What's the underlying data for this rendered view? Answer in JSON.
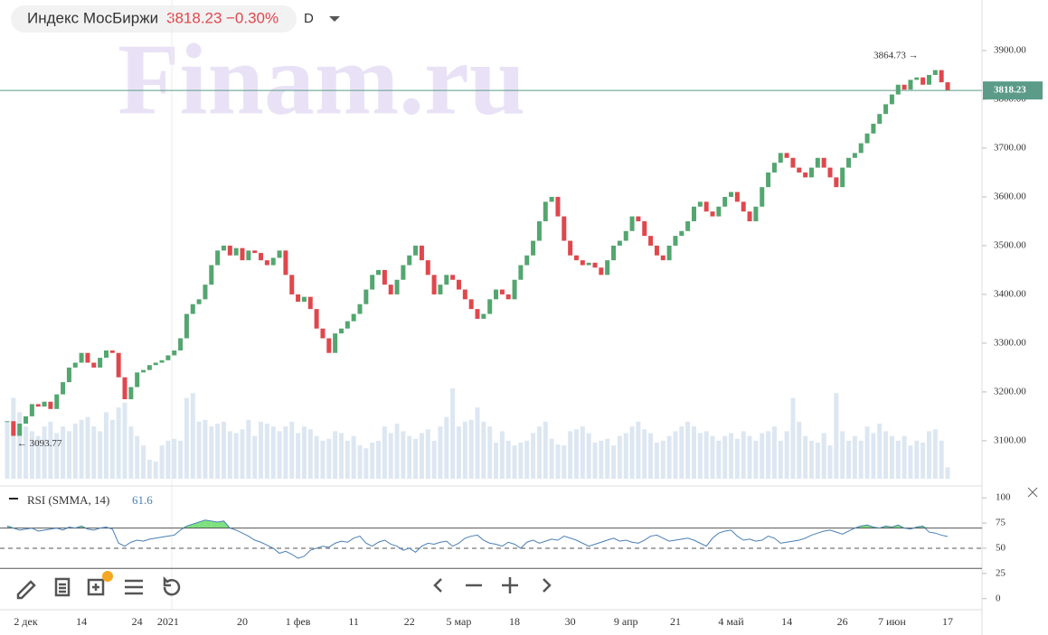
{
  "header": {
    "name": "Индекс МосБиржи",
    "price": 3818.23,
    "change": "−0.30%",
    "interval": "D"
  },
  "chart_data": [
    {
      "type": "candlestick",
      "watermark": "Finam.ru",
      "up_color": "#53a66f",
      "down_color": "#e0474c",
      "volume_color": "#dde7f2",
      "price_line_color": "#5b9b87",
      "categories": [
        null,
        null,
        null,
        "2 дек",
        null,
        null,
        null,
        null,
        null,
        null,
        null,
        null,
        "14",
        null,
        null,
        null,
        null,
        null,
        null,
        null,
        null,
        "24",
        null,
        null,
        null,
        null,
        "2021",
        null,
        null,
        null,
        null,
        null,
        null,
        null,
        null,
        null,
        null,
        null,
        "20",
        null,
        null,
        null,
        null,
        null,
        null,
        null,
        null,
        "1 фев",
        null,
        null,
        null,
        null,
        null,
        null,
        null,
        null,
        "11",
        null,
        null,
        null,
        null,
        null,
        null,
        null,
        null,
        "22",
        null,
        null,
        null,
        null,
        null,
        null,
        null,
        "5 мар",
        null,
        null,
        null,
        null,
        null,
        null,
        null,
        null,
        "18",
        null,
        null,
        null,
        null,
        null,
        null,
        null,
        null,
        "30",
        null,
        null,
        null,
        null,
        null,
        null,
        null,
        null,
        "9 апр",
        null,
        null,
        null,
        null,
        null,
        null,
        null,
        "21",
        null,
        null,
        null,
        null,
        null,
        null,
        null,
        null,
        "4 май",
        null,
        null,
        null,
        null,
        null,
        null,
        null,
        null,
        "14",
        null,
        null,
        null,
        null,
        null,
        null,
        null,
        null,
        "26",
        null,
        null,
        null,
        null,
        null,
        null,
        null,
        "7 июн",
        null,
        null,
        null,
        null,
        null,
        null,
        null,
        null,
        "17"
      ],
      "close": [
        3140,
        3110,
        3135,
        3150,
        3175,
        3170,
        3180,
        3165,
        3195,
        3220,
        3250,
        3260,
        3280,
        3260,
        3250,
        3270,
        3285,
        3280,
        3230,
        3185,
        3210,
        3240,
        3245,
        3255,
        3260,
        3265,
        3275,
        3285,
        3310,
        3360,
        3380,
        3390,
        3420,
        3460,
        3490,
        3500,
        3480,
        3495,
        3470,
        3490,
        3485,
        3470,
        3460,
        3475,
        3490,
        3440,
        3400,
        3385,
        3395,
        3370,
        3330,
        3310,
        3280,
        3320,
        3330,
        3345,
        3360,
        3380,
        3410,
        3440,
        3450,
        3420,
        3400,
        3430,
        3460,
        3480,
        3500,
        3470,
        3440,
        3400,
        3420,
        3440,
        3430,
        3410,
        3390,
        3370,
        3350,
        3360,
        3390,
        3410,
        3400,
        3390,
        3430,
        3460,
        3480,
        3510,
        3550,
        3590,
        3600,
        3560,
        3510,
        3480,
        3470,
        3460,
        3465,
        3455,
        3440,
        3470,
        3500,
        3510,
        3530,
        3560,
        3550,
        3520,
        3500,
        3480,
        3470,
        3500,
        3520,
        3530,
        3550,
        3580,
        3590,
        3570,
        3560,
        3580,
        3600,
        3610,
        3590,
        3570,
        3550,
        3580,
        3620,
        3650,
        3670,
        3690,
        3680,
        3660,
        3650,
        3640,
        3660,
        3680,
        3660,
        3640,
        3620,
        3660,
        3680,
        3690,
        3710,
        3730,
        3750,
        3770,
        3790,
        3810,
        3830,
        3820,
        3840,
        3845,
        3830,
        3850,
        3860,
        3835,
        3818.23
      ],
      "volume": [
        60,
        85,
        70,
        55,
        50,
        45,
        55,
        60,
        48,
        55,
        50,
        58,
        62,
        65,
        55,
        50,
        70,
        62,
        75,
        80,
        55,
        45,
        35,
        20,
        18,
        35,
        40,
        42,
        40,
        85,
        90,
        60,
        62,
        55,
        58,
        60,
        50,
        48,
        52,
        62,
        45,
        60,
        58,
        55,
        50,
        55,
        60,
        48,
        55,
        52,
        45,
        40,
        42,
        50,
        48,
        40,
        45,
        35,
        32,
        38,
        40,
        55,
        48,
        58,
        50,
        45,
        42,
        48,
        52,
        40,
        55,
        65,
        95,
        55,
        60,
        62,
        75,
        60,
        55,
        38,
        50,
        40,
        35,
        38,
        40,
        48,
        55,
        60,
        42,
        36,
        35,
        50,
        52,
        55,
        48,
        38,
        40,
        42,
        35,
        45,
        48,
        55,
        60,
        52,
        48,
        38,
        40,
        45,
        50,
        55,
        60,
        55,
        48,
        50,
        45,
        40,
        45,
        48,
        42,
        50,
        45,
        40,
        48,
        50,
        55,
        40,
        50,
        85,
        60,
        45,
        40,
        38,
        48,
        35,
        90,
        50,
        40,
        45,
        40,
        55,
        48,
        58,
        50,
        45,
        40,
        45,
        35,
        40,
        38,
        50,
        52,
        40,
        12
      ],
      "ylim": [
        3022,
        3963
      ],
      "yticks": [
        {
          "value": 3100,
          "label": "3100.00"
        },
        {
          "value": 3200,
          "label": "3200.00"
        },
        {
          "value": 3300,
          "label": "3300.00"
        },
        {
          "value": 3400,
          "label": "3400.00"
        },
        {
          "value": 3500,
          "label": "3500.00"
        },
        {
          "value": 3600,
          "label": "3600.00"
        },
        {
          "value": 3700,
          "label": "3700.00"
        },
        {
          "value": 3800,
          "label": "3800.00"
        },
        {
          "value": 3900,
          "label": "3900.00"
        }
      ],
      "annotations": [
        {
          "text": "3864.73 →",
          "value": 3864.73,
          "index": 148
        },
        {
          "text": "← 3093.77",
          "value": 3093.77,
          "index": 1
        }
      ]
    },
    {
      "type": "line",
      "title": "RSI (SMMA, 14)",
      "last": 61.6,
      "color": "#4a7fb5",
      "overbought_color": "#7ee07e",
      "values": [
        72,
        70,
        68,
        69,
        70,
        67,
        68,
        69,
        70,
        68,
        71,
        70,
        72,
        69,
        68,
        70,
        71,
        69,
        55,
        52,
        56,
        58,
        57,
        59,
        60,
        61,
        62,
        63,
        68,
        72,
        74,
        76,
        78,
        77,
        76,
        77,
        70,
        68,
        65,
        62,
        58,
        56,
        53,
        50,
        45,
        47,
        44,
        40,
        42,
        48,
        50,
        52,
        51,
        55,
        57,
        56,
        60,
        62,
        55,
        52,
        56,
        58,
        54,
        52,
        48,
        50,
        46,
        52,
        55,
        54,
        56,
        57,
        52,
        55,
        60,
        62,
        63,
        58,
        55,
        54,
        52,
        56,
        54,
        50,
        56,
        58,
        55,
        57,
        59,
        58,
        62,
        60,
        58,
        55,
        52,
        54,
        56,
        58,
        60,
        57,
        58,
        56,
        55,
        58,
        62,
        63,
        60,
        57,
        58,
        59,
        60,
        58,
        55,
        52,
        60,
        65,
        67,
        68,
        62,
        58,
        59,
        57,
        58,
        62,
        60,
        55,
        56,
        57,
        58,
        60,
        63,
        65,
        67,
        68,
        66,
        64,
        67,
        70,
        72,
        73,
        71,
        70,
        72,
        71,
        73,
        70,
        69,
        71,
        72,
        66,
        65,
        63,
        61.6
      ],
      "levels": [
        70,
        50,
        30
      ],
      "ylim": [
        -11,
        110
      ],
      "yticks": [
        0,
        25,
        50,
        75,
        100
      ]
    }
  ]
}
